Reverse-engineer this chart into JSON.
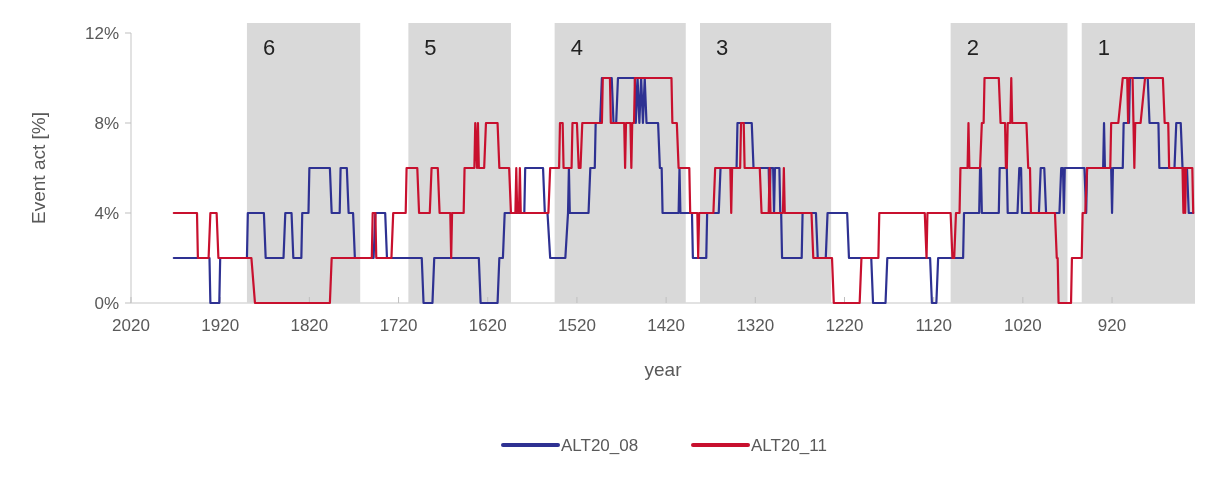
{
  "chart_data": {
    "type": "line",
    "xlabel": "year",
    "ylabel": "Event act [%]",
    "xlim": [
      2020,
      827
    ],
    "xticks": [
      2020,
      1920,
      1820,
      1720,
      1620,
      1520,
      1420,
      1320,
      1220,
      1120,
      1020,
      920
    ],
    "ylim": [
      0,
      12
    ],
    "yticks": [
      {
        "value": 0,
        "label": "0%"
      },
      {
        "value": 4,
        "label": "4%"
      },
      {
        "value": 8,
        "label": "8%"
      },
      {
        "value": 12,
        "label": "12%"
      }
    ],
    "grid": false,
    "legend": "bottom",
    "marker": "none",
    "line_style": "solid",
    "bands": [
      {
        "axis": "x",
        "from": 1890,
        "to": 1763,
        "label": "6",
        "color": "#d9d9d9"
      },
      {
        "axis": "x",
        "from": 1709,
        "to": 1594,
        "label": "5",
        "color": "#d9d9d9"
      },
      {
        "axis": "x",
        "from": 1545,
        "to": 1398,
        "label": "4",
        "color": "#d9d9d9"
      },
      {
        "axis": "x",
        "from": 1382,
        "to": 1235,
        "label": "3",
        "color": "#d9d9d9"
      },
      {
        "axis": "x",
        "from": 1101,
        "to": 970,
        "label": "2",
        "color": "#d9d9d9"
      },
      {
        "axis": "x",
        "from": 954,
        "to": 827,
        "label": "1",
        "color": "#d9d9d9"
      }
    ],
    "series": [
      {
        "name": "ALT20_08",
        "color": "#2e3192",
        "x": [
          1972,
          1932,
          1931,
          1921,
          1920,
          1890,
          1889,
          1871,
          1869,
          1849,
          1847,
          1840,
          1838,
          1829,
          1828,
          1821,
          1820,
          1797,
          1795,
          1786,
          1785,
          1778,
          1776,
          1771,
          1769,
          1748,
          1746,
          1735,
          1733,
          1694,
          1692,
          1682,
          1680,
          1630,
          1628,
          1609,
          1607,
          1603,
          1601,
          1579,
          1578,
          1558,
          1556,
          1553,
          1550,
          1533,
          1530,
          1529,
          1528,
          1507,
          1505,
          1500,
          1499,
          1494,
          1492,
          1481,
          1479,
          1476,
          1474,
          1455,
          1454,
          1452,
          1450,
          1448,
          1446,
          1444,
          1442,
          1429,
          1427,
          1425,
          1424,
          1406,
          1405,
          1404,
          1391,
          1390,
          1375,
          1374,
          1361,
          1359,
          1341,
          1340,
          1324,
          1322,
          1305,
          1304,
          1303,
          1300,
          1299,
          1298,
          1293,
          1292,
          1291,
          1290,
          1268,
          1267,
          1252,
          1250,
          1241,
          1239,
          1217,
          1215,
          1190,
          1188,
          1174,
          1172,
          1124,
          1122,
          1117,
          1115,
          1087,
          1086,
          1069,
          1068,
          1067,
          1066,
          1047,
          1046,
          1038,
          1037,
          1026,
          1024,
          1022,
          1021,
          1002,
          1000,
          996,
          994,
          979,
          977,
          975,
          974,
          973,
          951,
          949,
          948,
          930,
          929,
          928,
          921,
          920,
          919,
          908,
          907,
          901,
          900,
          880,
          878,
          868,
          867,
          850,
          848,
          843,
          841,
          836,
          834,
          829
        ],
        "values": [
          2,
          2,
          0,
          0,
          2,
          2,
          4,
          4,
          2,
          2,
          4,
          4,
          2,
          2,
          4,
          4,
          6,
          6,
          4,
          4,
          6,
          6,
          4,
          4,
          2,
          2,
          4,
          4,
          2,
          2,
          0,
          0,
          2,
          2,
          0,
          0,
          2,
          2,
          4,
          4,
          6,
          6,
          4,
          4,
          2,
          2,
          4,
          6,
          4,
          4,
          6,
          6,
          8,
          8,
          10,
          10,
          8,
          8,
          10,
          10,
          8,
          10,
          8,
          10,
          8,
          10,
          8,
          8,
          6,
          6,
          4,
          4,
          6,
          4,
          4,
          2,
          2,
          4,
          4,
          6,
          6,
          8,
          8,
          6,
          6,
          4,
          6,
          6,
          4,
          6,
          6,
          4,
          4,
          2,
          2,
          4,
          4,
          2,
          2,
          4,
          4,
          2,
          2,
          0,
          0,
          2,
          2,
          0,
          0,
          2,
          2,
          4,
          4,
          6,
          6,
          4,
          4,
          6,
          6,
          4,
          4,
          6,
          6,
          4,
          4,
          6,
          6,
          4,
          4,
          6,
          6,
          4,
          6,
          6,
          4,
          6,
          6,
          8,
          6,
          6,
          4,
          6,
          6,
          8,
          8,
          10,
          10,
          8,
          8,
          6,
          6,
          8,
          8,
          6,
          6,
          4,
          4
        ]
      },
      {
        "name": "ALT20_11",
        "color": "#c8102e",
        "x": [
          1972,
          1946,
          1945,
          1933,
          1931,
          1924,
          1922,
          1885,
          1881,
          1797,
          1795,
          1750,
          1749,
          1746,
          1745,
          1728,
          1726,
          1712,
          1711,
          1699,
          1697,
          1685,
          1683,
          1676,
          1674,
          1662,
          1661,
          1660,
          1647,
          1646,
          1635,
          1634,
          1632,
          1631,
          1630,
          1624,
          1622,
          1609,
          1607,
          1596,
          1594,
          1589,
          1588,
          1587,
          1585,
          1584,
          1583,
          1552,
          1550,
          1540,
          1539,
          1536,
          1535,
          1526,
          1525,
          1520,
          1518,
          1516,
          1514,
          1492,
          1491,
          1483,
          1482,
          1467,
          1466,
          1465,
          1460,
          1459,
          1458,
          1456,
          1455,
          1414,
          1413,
          1408,
          1406,
          1394,
          1393,
          1385,
          1384,
          1383,
          1367,
          1365,
          1348,
          1347,
          1346,
          1337,
          1336,
          1333,
          1332,
          1315,
          1313,
          1305,
          1304,
          1303,
          1289,
          1288,
          1287,
          1257,
          1255,
          1234,
          1232,
          1203,
          1201,
          1182,
          1181,
          1130,
          1128,
          1127,
          1101,
          1099,
          1097,
          1095,
          1091,
          1090,
          1082,
          1081,
          1080,
          1068,
          1066,
          1064,
          1063,
          1047,
          1045,
          1040,
          1039,
          1038,
          1037,
          1034,
          1033,
          1032,
          1016,
          1014,
          1012,
          1011,
          984,
          982,
          981,
          980,
          966,
          965,
          954,
          953,
          950,
          948,
          922,
          921,
          913,
          908,
          903,
          902,
          901,
          897,
          896,
          895,
          894,
          888,
          883,
          863,
          861,
          857,
          856,
          841,
          840,
          839,
          838,
          837,
          830,
          829
        ],
        "values": [
          4,
          4,
          2,
          2,
          4,
          4,
          2,
          2,
          0,
          0,
          2,
          2,
          4,
          4,
          2,
          2,
          4,
          4,
          6,
          6,
          4,
          4,
          6,
          6,
          4,
          4,
          2,
          4,
          4,
          6,
          6,
          8,
          6,
          8,
          6,
          6,
          8,
          8,
          6,
          6,
          4,
          4,
          6,
          4,
          4,
          6,
          4,
          4,
          6,
          6,
          8,
          8,
          6,
          6,
          8,
          8,
          6,
          6,
          8,
          8,
          10,
          10,
          8,
          8,
          6,
          8,
          8,
          6,
          8,
          8,
          10,
          10,
          8,
          8,
          6,
          6,
          4,
          4,
          2,
          4,
          4,
          6,
          6,
          4,
          6,
          6,
          8,
          8,
          6,
          6,
          4,
          4,
          6,
          4,
          4,
          6,
          4,
          4,
          2,
          2,
          0,
          0,
          2,
          2,
          4,
          4,
          2,
          4,
          4,
          2,
          2,
          4,
          4,
          6,
          6,
          8,
          6,
          6,
          8,
          8,
          10,
          10,
          8,
          8,
          6,
          6,
          8,
          8,
          10,
          8,
          8,
          6,
          6,
          4,
          4,
          2,
          2,
          0,
          0,
          2,
          2,
          4,
          4,
          6,
          6,
          8,
          8,
          10,
          10,
          8,
          10,
          10,
          8,
          6,
          8,
          8,
          10,
          10,
          8,
          8,
          6,
          6,
          4,
          6,
          4,
          6,
          6,
          4
        ]
      }
    ]
  }
}
